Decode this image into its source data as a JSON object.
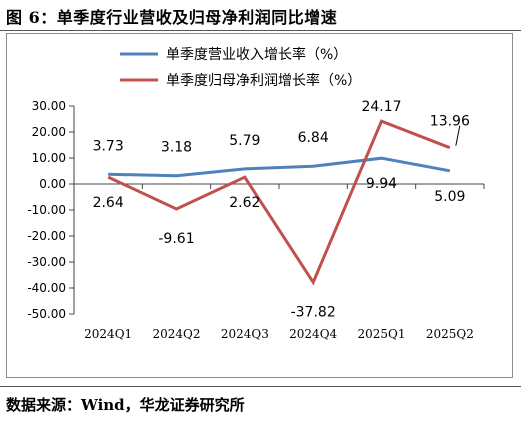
{
  "header": {
    "title": "图 6：单季度行业营收及归母净利润同比增速"
  },
  "footer": {
    "source": "数据来源：Wind，华龙证券研究所"
  },
  "chart_data": {
    "type": "line",
    "title": "",
    "xlabel": "",
    "ylabel": "",
    "categories": [
      "2024Q1",
      "2024Q2",
      "2024Q3",
      "2024Q4",
      "2025Q1",
      "2025Q2"
    ],
    "ylim": [
      -50,
      30
    ],
    "yticks": [
      "30.00",
      "20.00",
      "10.00",
      "0.00",
      "-10.00",
      "-20.00",
      "-30.00",
      "-40.00",
      "-50.00"
    ],
    "grid": false,
    "legend_position": "top",
    "series": [
      {
        "name": "单季度营业收入增长率（%）",
        "color": "#4f81bd",
        "values": [
          3.73,
          3.18,
          5.79,
          6.84,
          9.94,
          5.09
        ],
        "labels": [
          "3.73",
          "3.18",
          "5.79",
          "6.84",
          "9.94",
          "5.09"
        ]
      },
      {
        "name": "单季度归母净利润增长率（%）",
        "color": "#c0504d",
        "values": [
          2.64,
          -9.61,
          2.62,
          -37.82,
          24.17,
          13.96
        ],
        "labels": [
          "2.64",
          "-9.61",
          "2.62",
          "-37.82",
          "24.17",
          "13.96"
        ]
      }
    ]
  }
}
